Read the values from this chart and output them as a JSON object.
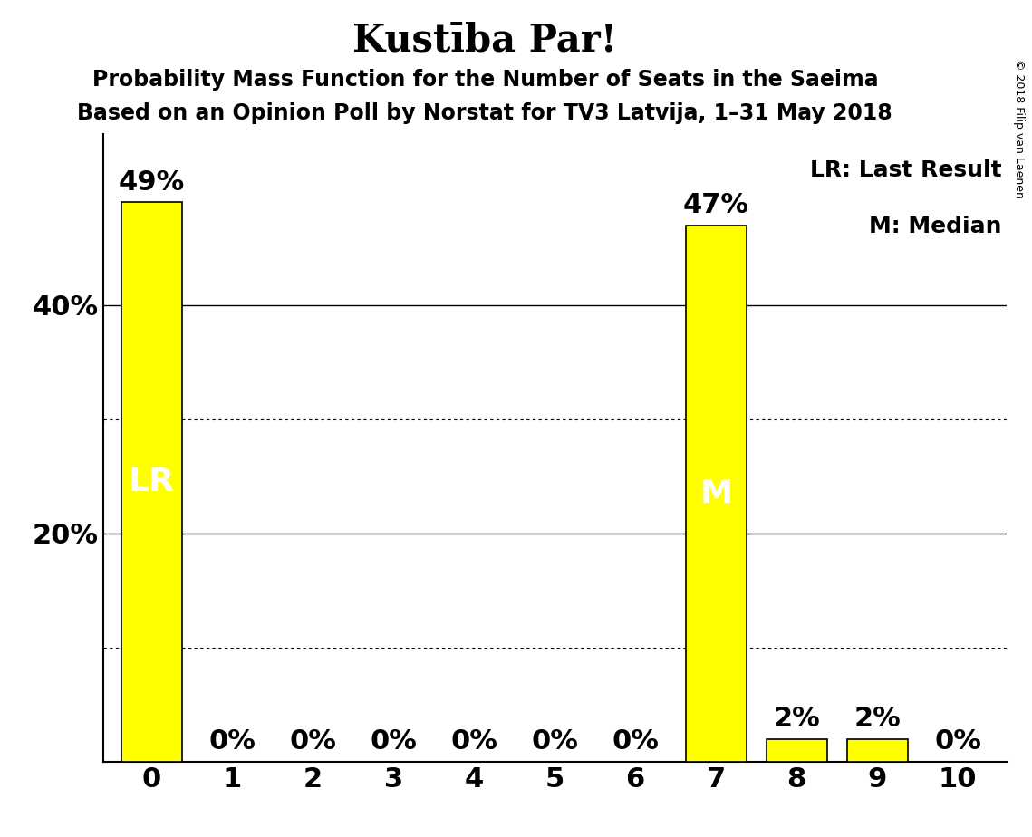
{
  "title": "Kustība Par!",
  "subtitle1": "Probability Mass Function for the Number of Seats in the Saeima",
  "subtitle2": "Based on an Opinion Poll by Norstat for TV3 Latvija, 1–31 May 2018",
  "copyright": "© 2018 Filip van Laenen",
  "categories": [
    0,
    1,
    2,
    3,
    4,
    5,
    6,
    7,
    8,
    9,
    10
  ],
  "values": [
    49,
    0,
    0,
    0,
    0,
    0,
    0,
    47,
    2,
    2,
    0
  ],
  "bar_color": "#FFFF00",
  "bar_edgecolor": "#000000",
  "lr_index": 0,
  "median_index": 7,
  "label_lr": "LR",
  "label_median": "M",
  "legend_lr": "LR: Last Result",
  "legend_m": "M: Median",
  "ytick_positions": [
    20,
    40
  ],
  "ytick_labels": [
    "20%",
    "40%"
  ],
  "solid_grid": [
    20,
    40
  ],
  "dotted_grid": [
    10,
    30
  ],
  "ylim": [
    0,
    55
  ],
  "background_color": "#FFFFFF",
  "title_fontsize": 30,
  "subtitle_fontsize": 17,
  "bar_label_fontsize": 22,
  "inner_label_fontsize": 26,
  "axis_label_fontsize": 22,
  "legend_fontsize": 18,
  "copyright_fontsize": 9
}
